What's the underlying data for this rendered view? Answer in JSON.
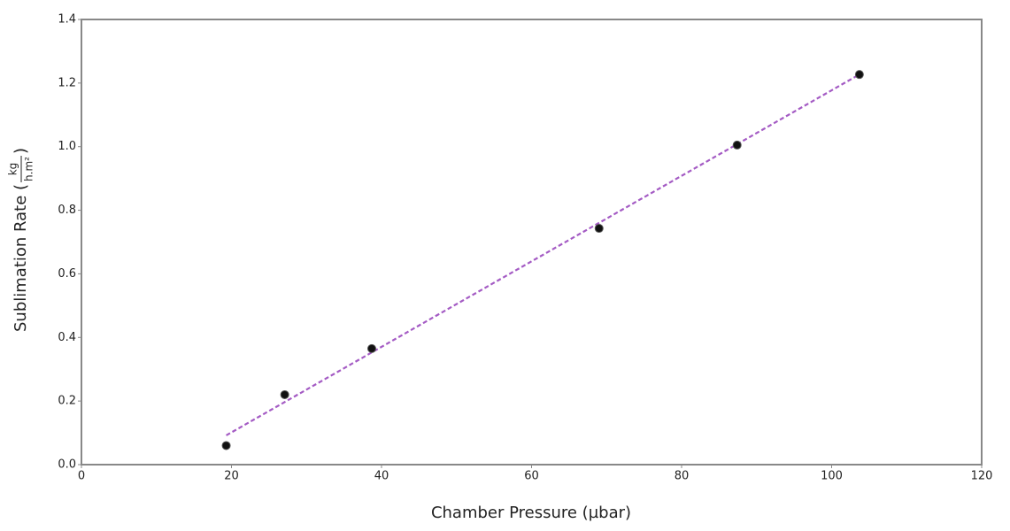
{
  "chart_data": {
    "type": "scatter",
    "xlabel": "Chamber Pressure (µbar)",
    "ylabel": "Sublimation Rate (",
    "ylabel_unit_numerator": "kg",
    "ylabel_unit_denominator": "h.m²",
    "ylabel_close": ")",
    "x": [
      19.3,
      27.1,
      38.7,
      69.0,
      87.4,
      103.7
    ],
    "values": [
      0.06,
      0.22,
      0.365,
      0.743,
      1.005,
      1.227
    ],
    "color": "#111111",
    "trendline": {
      "x": [
        19.3,
        103.7
      ],
      "values": [
        0.092,
        1.227
      ],
      "color": "#a45bc4",
      "dashed": true
    },
    "xlim": [
      0,
      120
    ],
    "xticks": [
      0,
      20,
      40,
      60,
      80,
      100,
      120
    ],
    "ylim": [
      0,
      1.4
    ],
    "yticks": [
      {
        "value": 0,
        "label": "0.0"
      },
      0.2,
      0.4,
      0.6,
      0.8,
      {
        "value": 1,
        "label": "1.0"
      },
      1.2,
      1.4
    ],
    "grid": false
  }
}
